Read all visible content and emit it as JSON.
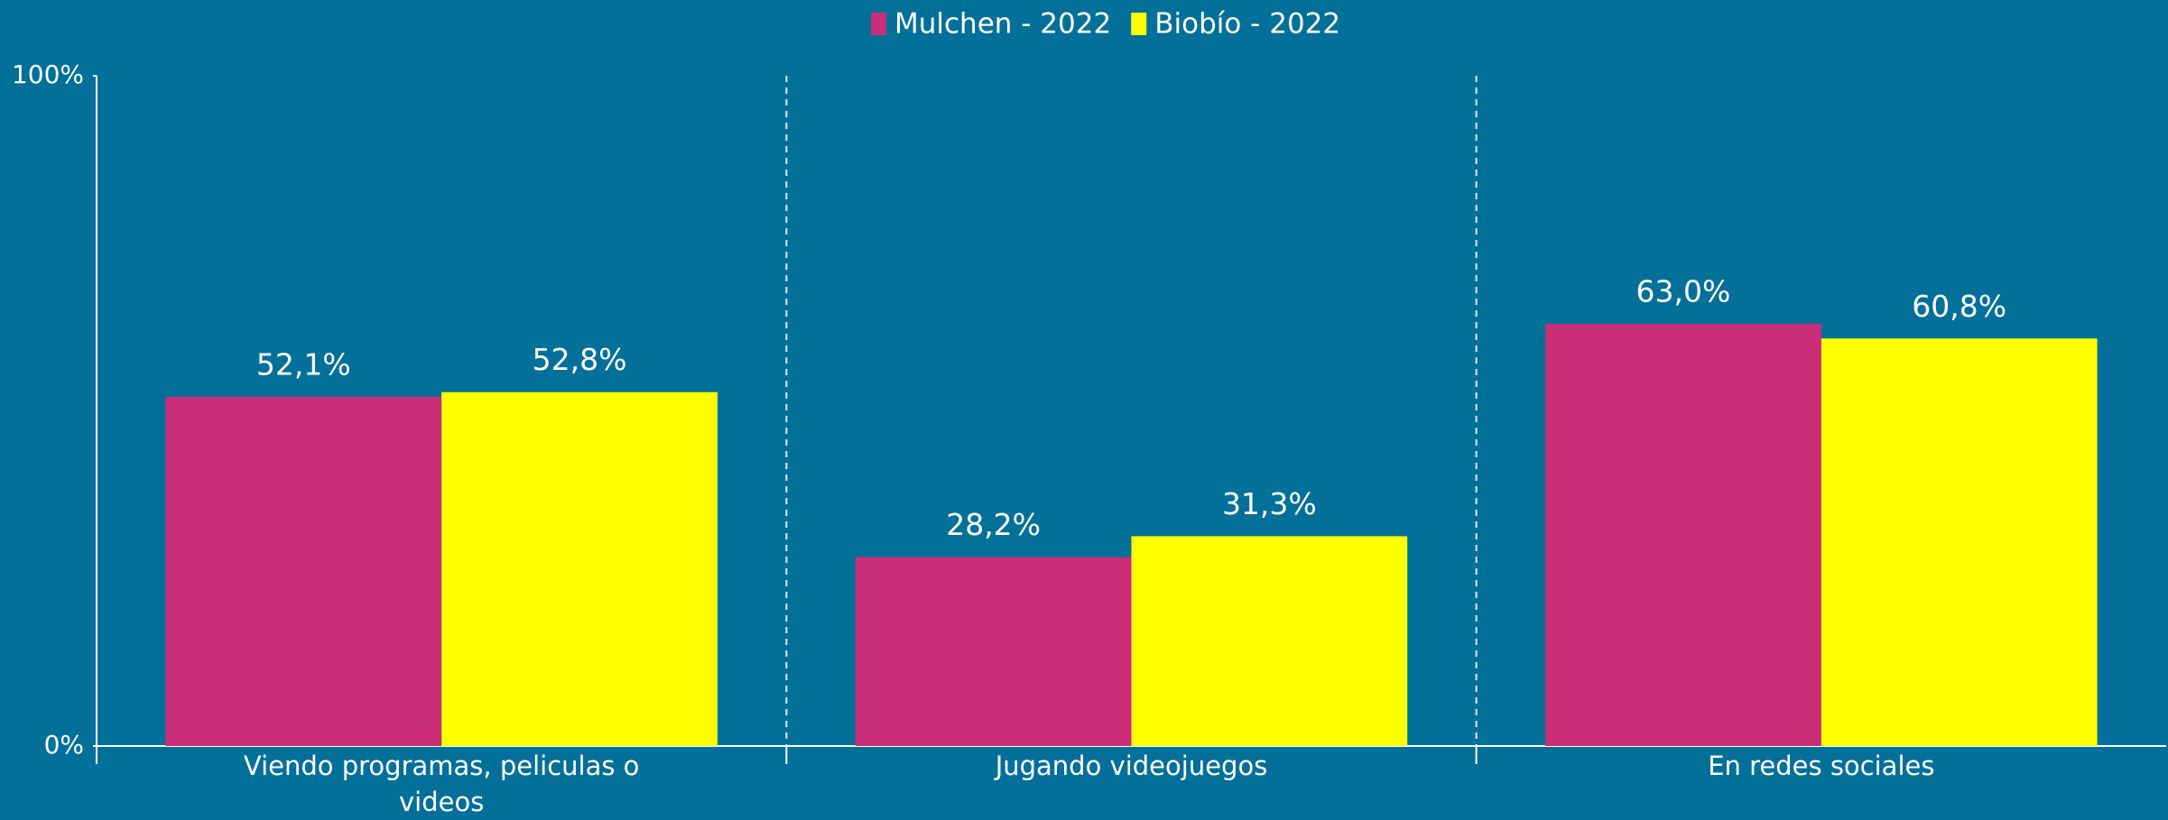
{
  "chart_data": {
    "type": "bar",
    "categories": [
      "Viendo programas, peliculas o videos",
      "Jugando videojuegos",
      "En redes sociales"
    ],
    "series": [
      {
        "name": "Mulchen - 2022",
        "color": "#c92d78",
        "values": [
          52.1,
          28.2,
          63.0
        ],
        "value_labels": [
          "52,1%",
          "28,2%",
          "63,0%"
        ]
      },
      {
        "name": "Biobío - 2022",
        "color": "#ffff00",
        "values": [
          52.8,
          31.3,
          60.8
        ],
        "value_labels": [
          "52,8%",
          "31,3%",
          "60,8%"
        ]
      }
    ],
    "ylim": [
      0,
      100
    ],
    "yticks": [
      {
        "value": 0,
        "label": "0%"
      },
      {
        "value": 100,
        "label": "100%"
      }
    ],
    "legend": "top"
  }
}
